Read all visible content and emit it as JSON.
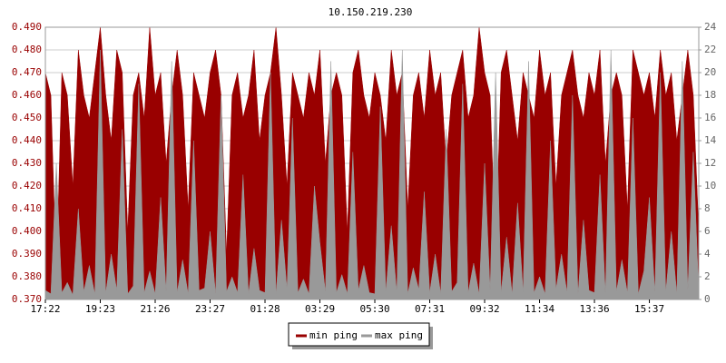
{
  "chart_data": {
    "type": "area",
    "title": "10.150.219.230",
    "categories": [
      "17:22",
      null,
      null,
      null,
      null,
      null,
      null,
      null,
      null,
      null,
      "19:23",
      null,
      null,
      null,
      null,
      null,
      null,
      null,
      null,
      null,
      "21:26",
      null,
      null,
      null,
      null,
      null,
      null,
      null,
      null,
      null,
      "23:27",
      null,
      null,
      null,
      null,
      null,
      null,
      null,
      null,
      null,
      "01:28",
      null,
      null,
      null,
      null,
      null,
      null,
      null,
      null,
      null,
      "03:29",
      null,
      null,
      null,
      null,
      null,
      null,
      null,
      null,
      null,
      "05:30",
      null,
      null,
      null,
      null,
      null,
      null,
      null,
      null,
      null,
      "07:31",
      null,
      null,
      null,
      null,
      null,
      null,
      null,
      null,
      null,
      "09:32",
      null,
      null,
      null,
      null,
      null,
      null,
      null,
      null,
      null,
      "11:34",
      null,
      null,
      null,
      null,
      null,
      null,
      null,
      null,
      null,
      "13:36",
      null,
      null,
      null,
      null,
      null,
      null,
      null,
      null,
      null,
      "15:37",
      null,
      null,
      null,
      null,
      null,
      null,
      null,
      null,
      null
    ],
    "series": [
      {
        "name": "min ping",
        "color": "#990000",
        "values": [
          0.47,
          0.46,
          0.38,
          0.47,
          0.46,
          0.42,
          0.48,
          0.46,
          0.45,
          0.47,
          0.49,
          0.46,
          0.44,
          0.48,
          0.47,
          0.4,
          0.46,
          0.47,
          0.45,
          0.49,
          0.46,
          0.47,
          0.43,
          0.46,
          0.48,
          0.46,
          0.41,
          0.47,
          0.46,
          0.45,
          0.47,
          0.48,
          0.46,
          0.39,
          0.46,
          0.47,
          0.45,
          0.46,
          0.48,
          0.44,
          0.46,
          0.47,
          0.49,
          0.46,
          0.42,
          0.47,
          0.46,
          0.45,
          0.47,
          0.46,
          0.48,
          0.43,
          0.46,
          0.47,
          0.46,
          0.4,
          0.47,
          0.48,
          0.46,
          0.45,
          0.47,
          0.46,
          0.44,
          0.48,
          0.46,
          0.47,
          0.41,
          0.46,
          0.47,
          0.45,
          0.48,
          0.46,
          0.47,
          0.43,
          0.46,
          0.47,
          0.48,
          0.45,
          0.46,
          0.49,
          0.47,
          0.46,
          0.39,
          0.47,
          0.48,
          0.46,
          0.44,
          0.47,
          0.46,
          0.45,
          0.48,
          0.46,
          0.47,
          0.42,
          0.46,
          0.47,
          0.48,
          0.46,
          0.45,
          0.47,
          0.46,
          0.48,
          0.43,
          0.46,
          0.47,
          0.46,
          0.41,
          0.48,
          0.47,
          0.46,
          0.47,
          0.45,
          0.48,
          0.46,
          0.47,
          0.44,
          0.46,
          0.48,
          0.46,
          0.4
        ]
      },
      {
        "name": "max ping",
        "color": "#999999",
        "axis": "y2",
        "values": [
          0.8,
          0.5,
          12,
          0.6,
          1.5,
          0.4,
          8,
          0.7,
          3,
          0.5,
          22,
          0.6,
          4,
          0.8,
          15,
          0.5,
          1.2,
          19,
          0.6,
          2.5,
          0.5,
          9,
          0.7,
          21,
          0.6,
          3.5,
          0.5,
          14,
          0.8,
          1,
          6,
          0.5,
          18,
          0.7,
          2,
          0.6,
          11,
          0.5,
          4.5,
          0.8,
          0.6,
          20,
          0.5,
          7,
          0.9,
          16,
          0.6,
          1.8,
          0.5,
          10,
          5,
          0.7,
          21,
          0.6,
          2.2,
          0.5,
          13,
          0.8,
          3,
          0.6,
          0.5,
          17,
          0.7,
          6.5,
          0.6,
          22,
          0.5,
          2.8,
          0.9,
          9.5,
          0.6,
          4,
          0.5,
          15,
          0.7,
          1.5,
          19,
          0.6,
          3.2,
          0.5,
          12,
          0.8,
          20,
          0.6,
          5.5,
          0.5,
          8.5,
          0.7,
          21,
          0.6,
          2,
          0.5,
          14,
          0.9,
          4,
          0.6,
          18,
          0.5,
          7,
          0.8,
          0.6,
          11,
          0.5,
          22,
          0.7,
          3.5,
          0.6,
          16,
          0.5,
          2.5,
          9,
          0.6,
          20,
          0.7,
          6,
          0.5,
          21,
          0.8,
          13,
          0.5
        ]
      }
    ],
    "ylim": [
      0.37,
      0.49
    ],
    "yticks": [
      {
        "value": 0.37,
        "label": "0.370"
      },
      {
        "value": 0.38,
        "label": "0.380"
      },
      {
        "value": 0.39,
        "label": "0.390"
      },
      {
        "value": 0.4,
        "label": "0.400"
      },
      {
        "value": 0.41,
        "label": "0.410"
      },
      {
        "value": 0.42,
        "label": "0.420"
      },
      {
        "value": 0.43,
        "label": "0.430"
      },
      {
        "value": 0.44,
        "label": "0.440"
      },
      {
        "value": 0.45,
        "label": "0.450"
      },
      {
        "value": 0.46,
        "label": "0.460"
      },
      {
        "value": 0.47,
        "label": "0.470"
      },
      {
        "value": 0.48,
        "label": "0.480"
      },
      {
        "value": 0.49,
        "label": "0.490"
      }
    ],
    "y2lim": [
      0,
      24
    ],
    "y2ticks": [
      0,
      2,
      4,
      6,
      8,
      10,
      12,
      14,
      16,
      18,
      20,
      22,
      24
    ],
    "grid": true
  }
}
